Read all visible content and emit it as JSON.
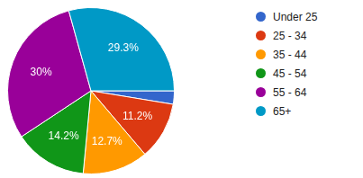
{
  "chart_data": {
    "type": "pie",
    "categories": [
      "Under 25",
      "25 - 34",
      "35 - 44",
      "45 - 54",
      "55 - 64",
      "65+"
    ],
    "values": [
      2.6,
      11.2,
      12.7,
      14.2,
      30,
      29.3
    ],
    "value_labels": [
      null,
      "11.2%",
      "12.7%",
      "14.2%",
      "30%",
      "29.3%"
    ],
    "colors": [
      "#3366cc",
      "#dc3912",
      "#ff9900",
      "#109618",
      "#990099",
      "#0099c6"
    ],
    "data_labels": true,
    "legend": "right"
  }
}
